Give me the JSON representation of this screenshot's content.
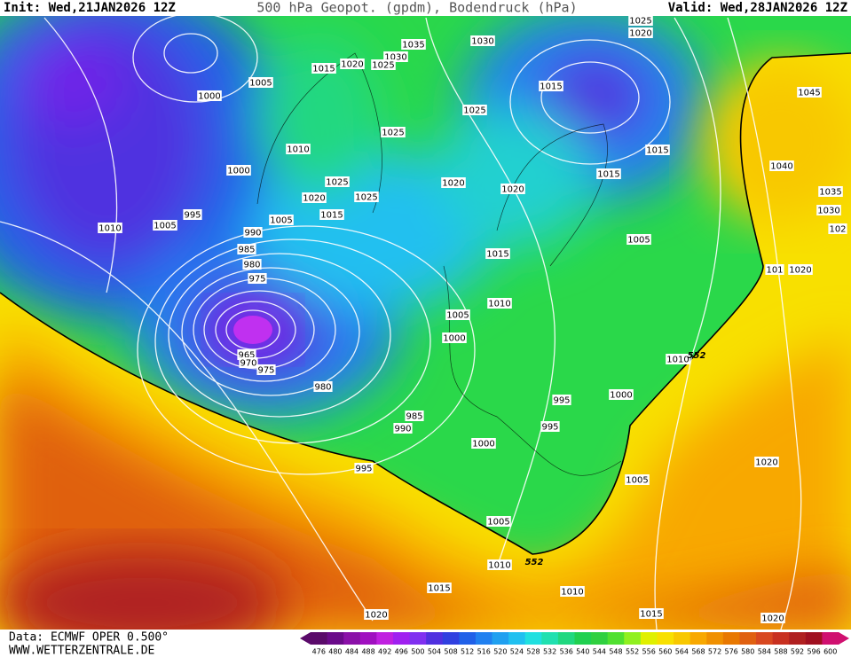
{
  "header": {
    "init": "Init: Wed,21JAN2026 12Z",
    "title": "500 hPa Geopot. (gpdm), Bodendruck (hPa)",
    "valid": "Valid: Wed,28JAN2026 12Z"
  },
  "isobar_labels": [
    "1035",
    "1030",
    "1020",
    "1025",
    "1015",
    "1005",
    "1000",
    "1030",
    "1025",
    "1020",
    "1015",
    "1025",
    "1025",
    "1010",
    "1000",
    "1025",
    "1020",
    "1025",
    "1020",
    "1020",
    "1015",
    "1015",
    "1040",
    "1045",
    "1035",
    "1030",
    "102",
    "995",
    "1005",
    "1010",
    "1005",
    "1015",
    "990",
    "985",
    "980",
    "975",
    "1005",
    "1015",
    "1010",
    "1005",
    "1000",
    "101",
    "1020",
    "1010",
    "965",
    "970",
    "975",
    "980",
    "1000",
    "995",
    "985",
    "990",
    "995",
    "1000",
    "995",
    "1020",
    "1005",
    "1005",
    "1010",
    "1015",
    "1010",
    "1020",
    "1015",
    "1020"
  ],
  "contour_labels": [
    "552",
    "552"
  ],
  "footer": {
    "data": "Data: ECMWF OPER 0.500°",
    "site": "WWW.WETTERZENTRALE.DE"
  },
  "colorbar": {
    "values": [
      476,
      480,
      484,
      488,
      492,
      496,
      500,
      504,
      508,
      512,
      516,
      520,
      524,
      528,
      532,
      536,
      540,
      544,
      548,
      552,
      556,
      560,
      564,
      568,
      572,
      576,
      580,
      584,
      588,
      592,
      596,
      600
    ],
    "colors": [
      "#5a0a6a",
      "#6a0a8a",
      "#8a10a8",
      "#a010c0",
      "#c020e0",
      "#a020f0",
      "#8030f0",
      "#5030e0",
      "#3040e0",
      "#2060e8",
      "#2080f0",
      "#20a0f0",
      "#20c0f0",
      "#20e0e0",
      "#20e0b0",
      "#20d880",
      "#20d050",
      "#30d040",
      "#50e030",
      "#90f020",
      "#e0f000",
      "#f8e000",
      "#f8c800",
      "#f8a800",
      "#f09000",
      "#e87800",
      "#e06010",
      "#d84820",
      "#c83020",
      "#b02020",
      "#a01020",
      "#d01070"
    ]
  }
}
